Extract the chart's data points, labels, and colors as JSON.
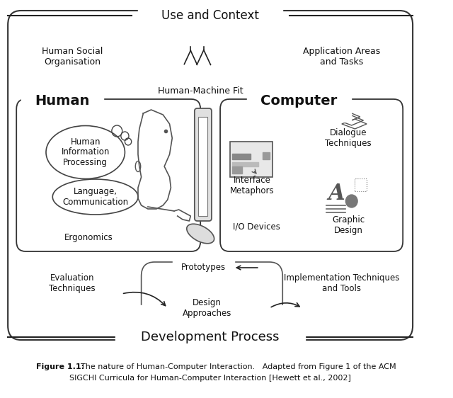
{
  "title_use_context": "Use and Context",
  "title_dev_process": "Development Process",
  "human_label": "Human",
  "computer_label": "Computer",
  "human_social": "Human Social\nOrganisation",
  "application_areas": "Application Areas\nand Tasks",
  "human_machine_fit": "Human-Machine Fit",
  "human_info_proc": "Human\nInformation\nProcessing",
  "language_comm": "Language,\nCommunication",
  "ergonomics": "Ergonomics",
  "interface_metaphors": "Interface\nMetaphors",
  "io_devices": "I/O Devices",
  "dialogue_techniques": "Dialogue\nTechniques",
  "graphic_design": "Graphic\nDesign",
  "prototypes": "Prototypes",
  "design_approaches": "Design\nApproaches",
  "evaluation_techniques": "Evaluation\nTechniques",
  "implementation_tools": "Implementation Techniques\nand Tools",
  "fig_bold": "Figure 1.1:",
  "fig_normal": "  The nature of Human-Computer Interaction.   Adapted from Figure 1 of the ACM",
  "fig_line2": "SIGCHI Curricula for Human-Computer Interaction [Hewett et al., 2002]"
}
